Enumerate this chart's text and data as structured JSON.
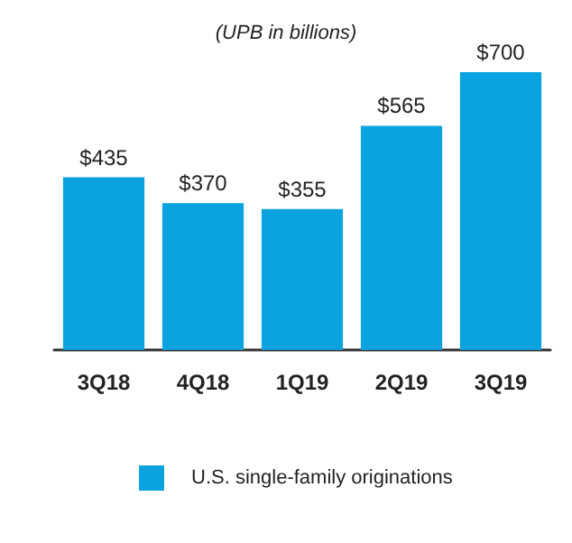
{
  "chart_data": {
    "type": "bar",
    "title": "(UPB in billions)",
    "categories": [
      "3Q18",
      "4Q18",
      "1Q19",
      "2Q19",
      "3Q19"
    ],
    "series": [
      {
        "name": "U.S. single-family originations",
        "color": "#0aa3e0",
        "values": [
          435,
          370,
          355,
          565,
          700
        ],
        "value_labels": [
          "$435",
          "$370",
          "$355",
          "$565",
          "$700"
        ]
      }
    ],
    "grid": false,
    "legend": "bottom"
  }
}
